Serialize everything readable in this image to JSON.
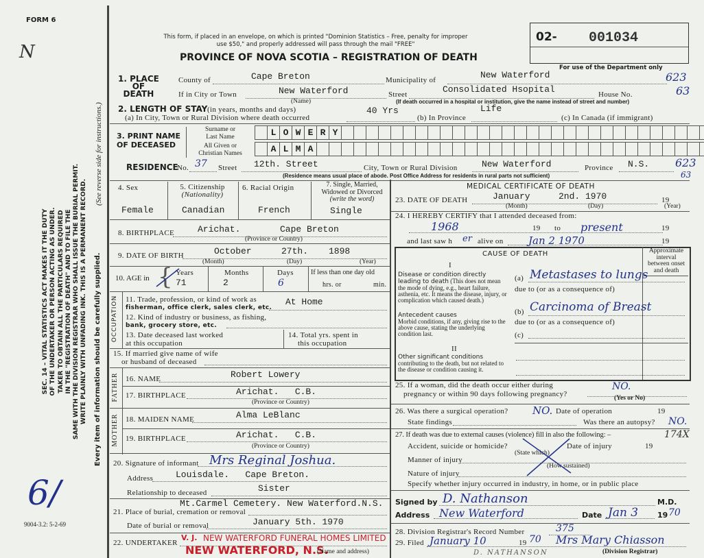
{
  "form_number": "FORM 6",
  "margin_note": "N",
  "form_code": "9004-3.2: 5-2-69",
  "sidebar_notice": [
    "SEC. 14 – VITAL STATISTICS ACT MAKES IT THE DUTY",
    "OF THE UNDERTAKER OR PERSON ACTING AS UNDER.",
    "TAKER TO OBTAIN ALL THE PARTICULARS REQUIRED",
    "IN THE \"REGISTRATION OF DEATH\" AND TO FILE THE",
    "SAME WITH THE DIVISION REGISTRAR WHO SHALL ISSUE THE BURIAL PERMIT.",
    "WRITE PLAINLY WITH UNFADING INK. THIS IS A PERMANENT RECORD."
  ],
  "sidebar_footer": "Every item of information should be carefully supplied.",
  "sidebar_reverse": "(See reverse side for instructions.)",
  "header": {
    "mail_notice_1": "This form, if placed in an envelope, on which is printed \"Dominion Statistics – Free, penalty for improper",
    "mail_notice_2": "use $50,\" and properly addressed will pass through the mail \"FREE\"",
    "title": "PROVINCE OF NOVA SCOTIA – REGISTRATION OF DEATH",
    "reg_prefix": "02-",
    "reg_number": "001034",
    "dept_note": "For use of the Department only"
  },
  "s1": {
    "label_1": "1. PLACE",
    "label_2": "OF",
    "label_3": "DEATH",
    "county_label": "County of",
    "county": "Cape Breton",
    "municipality_label": "Municipality of",
    "municipality": "New Waterford",
    "city_label": "If in City or Town",
    "city": "New Waterford",
    "name_note": "(Name)",
    "street_label": "Street",
    "street": "Consolidated Hsopital",
    "house_label": "House No.",
    "street_note": "(If death occurred in a hospital or institution, give the name instead of street and number)",
    "code_1": "623",
    "code_2": "63"
  },
  "s2": {
    "label": "2. LENGTH OF STAY",
    "label_note": "(in years, months and days)",
    "a_label": "(a) In City, Town or Rural Division where death occurred",
    "a_value": "40 Yrs",
    "b_label": "(b) In Province",
    "b_value": "Life",
    "c_label": "(c) In Canada (if immigrant)"
  },
  "s3": {
    "label_1": "3. PRINT NAME",
    "label_2": "OF DECEASED",
    "surname_label_1": "Surname or",
    "surname_label_2": "Last Name",
    "given_label_1": "All Given or",
    "given_label_2": "Christian Names",
    "surname_letters": [
      "",
      "L",
      "O",
      "W",
      "E",
      "R",
      "Y"
    ],
    "given_letters": [
      "",
      "A",
      "L",
      "M",
      "A"
    ]
  },
  "residence": {
    "label": "RESIDENCE",
    "no_label": "No.",
    "no": "37",
    "street_label": "Street",
    "street": "12th. Street",
    "city_label": "City, Town or Rural Division",
    "city": "New Waterford",
    "province_label": "Province",
    "province": "N.S.",
    "code_1": "623",
    "code_2": "63",
    "note": "(Residence means usual place of abode. Post Office Address for residents in rural parts not sufficient)"
  },
  "personal": {
    "sex_label": "4. Sex",
    "sex": "Female",
    "citizenship_label": "5. Citizenship",
    "citizenship_note": "(Nationality)",
    "citizenship": "Canadian",
    "origin_label": "6. Racial Origin",
    "origin": "French",
    "marital_label_1": "7. Single, Married,",
    "marital_label_2": "Widowed or Divorced",
    "marital_label_3": "(write the word)",
    "marital": "Single",
    "birthplace_label": "8. BIRTHPLACE",
    "birthplace_town": "Arichat.",
    "birthplace_region": "Cape Breton",
    "birthplace_note": "(Province or Country)",
    "dob_label": "9. DATE OF BIRTH",
    "dob_month": "October",
    "dob_day": "27th.",
    "dob_year": "1898",
    "month_note": "(Month)",
    "day_note": "(Day)",
    "year_note": "(Year)",
    "age_label": "10. AGE in",
    "years_label": "Years",
    "years": "71",
    "months_label": "Months",
    "months": "2",
    "days_label": "Days",
    "days": "6",
    "less_day": "If less than one day old",
    "hrs": "hrs. or",
    "min": "min."
  },
  "occupation": {
    "side_label": "OCCUPATION",
    "trade_1": "11. Trade, profession, or kind of work as",
    "trade_2": "fisherman, office clerk, sales clerk, etc.",
    "trade": "At Home",
    "industry_1": "12. Kind of industry or business, as fishing,",
    "industry_2": "bank, grocery store, etc.",
    "last_worked_1": "13. Date deceased last worked",
    "last_worked_2": "at this occupation",
    "total_1": "14. Total yrs. spent in",
    "total_2": "this occupation"
  },
  "spouse": {
    "label_1": "15. If married give name of wife",
    "label_2": "or husband of deceased"
  },
  "father": {
    "side_label": "FATHER",
    "name_label": "16. NAME",
    "name": "Robert Lowery",
    "birthplace_label": "17. BIRTHPLACE",
    "birthplace": "Arichat.   C.B.",
    "note": "(Province or Country)"
  },
  "mother": {
    "side_label": "MOTHER",
    "name_label": "18. MAIDEN NAME",
    "name": "Alma LeBlanc",
    "birthplace_label": "19. BIRTHPLACE",
    "birthplace": "Arichat.   C.B.",
    "note": "(Province or Country)"
  },
  "informant": {
    "label": "20. Signature of informant",
    "signature": "Mrs Reginal Joshua.",
    "address_label": "Address",
    "address": "Louisdale.   Cape Breton.",
    "relation_label": "Relationship to deceased",
    "relation": "Sister"
  },
  "burial": {
    "place_label": "21. Place of burial, cremation or removal",
    "place": "Mt.Carmel Cemetery. New Waterford.N.S.",
    "date_label": "Date of burial or removal",
    "date": "January 5th. 1970"
  },
  "undertaker": {
    "label": "22. UNDERTAKER",
    "typed": "V. J.",
    "stamp_1": "NEW WATERFORD FUNERAL HOMES LIMITED",
    "stamp_2": "NEW WATERFORD, N.S.",
    "note": "(Name and address)"
  },
  "medical": {
    "title": "MEDICAL CERTIFICATE OF DEATH",
    "dod_label": "23. DATE OF DEATH",
    "dod_month": "January",
    "dod_day": "2nd. 1970",
    "nineteen": "19",
    "month_note": "(Month)",
    "day_note": "(Day)",
    "year_note": "(Year)",
    "certify_label": "24. I HEREBY CERTIFY that I attended deceased from:",
    "from": "1968",
    "to_label": "to",
    "to": "present",
    "last_saw_label": "and last saw h",
    "last_saw_pronoun": "er",
    "alive_label": "alive on",
    "last_saw": "Jan 2 1970"
  },
  "cause": {
    "title": "CAUSE OF DEATH",
    "part1": "I",
    "part2": "II",
    "interval_label": "Approximate interval between onset and death",
    "direct_title": "Disease or condition directly leading to death",
    "direct_text": "(This does not mean the mode of dying, e.g., heart failure, asthenia, etc. It means the disease, injury, or complication which caused death.)",
    "antecedent_title": "Antecedent causes",
    "antecedent_text": "Morbid conditions, if any, giving rise to the above cause, stating the underlying condition last.",
    "other_title": "Other significant conditions",
    "other_text": "contributing to the death, but not related to the disease or condition causing it.",
    "a_label": "(a)",
    "a_value": "Metastases to lungs",
    "due_to": "due to (or as a consequence of)",
    "b_label": "(b)",
    "b_value": "Carcinoma of Breast",
    "c_label": "(c)"
  },
  "q25": {
    "label_1": "25. If a woman, did the death occur either during",
    "label_2": "pregnancy or within 90 days following pregnancy?",
    "value": "NO.",
    "note": "(Yes or No)"
  },
  "q26": {
    "label": "26. Was there a surgical operation?",
    "value": "NO.",
    "date_label": "Date of operation",
    "nineteen": "19",
    "findings_label": "State findings",
    "autopsy_label": "Was there an autopsy?",
    "autopsy": "NO."
  },
  "q27": {
    "label": "27. If death was due to external causes (violence) fill in also the following: –",
    "code": "174X",
    "accident_label": "Accident, suicide or homicide?",
    "state_which": "(State which)",
    "injury_date_label": "Date of injury",
    "nineteen": "19",
    "manner_label": "Manner of injury",
    "how": "(How sustained)",
    "nature_label": "Nature of injury",
    "specify_label": "Specify whether injury occurred in industry, in home, or in public place"
  },
  "signature": {
    "signed_label": "Signed by",
    "signed": "D. Nathanson",
    "md": "M.D.",
    "address_label": "Address",
    "address": "New Waterford",
    "date_label": "Date",
    "date": "Jan 3",
    "year_prefix": "19",
    "year": "70"
  },
  "registrar": {
    "record_label": "28. Division Registrar's Record Number",
    "record": "375",
    "filed_label": "29. Filed",
    "filed": "January 10",
    "nineteen": "19",
    "filed_year": "70",
    "registrar_sig": "Mrs Mary Chiasson",
    "registrar_note": "(Division Registrar)",
    "printed_name": "D. NATHANSON"
  },
  "margin_initials": "6/"
}
